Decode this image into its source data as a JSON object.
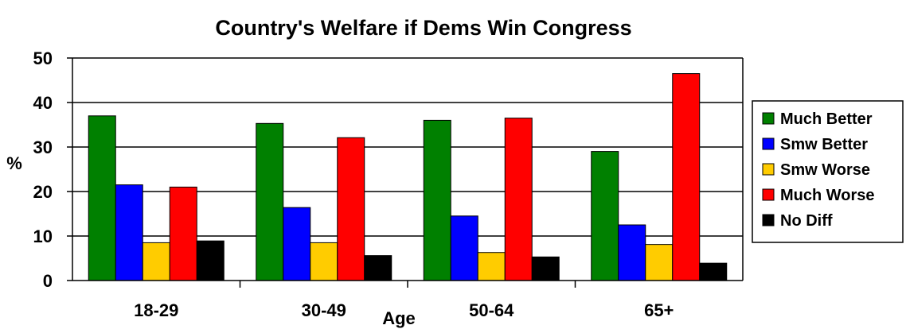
{
  "chart_data": {
    "type": "bar",
    "title": "Country's Welfare if Dems Win Congress",
    "xlabel": "Age",
    "ylabel": "%",
    "ylim": [
      0,
      50
    ],
    "yticks": [
      "0",
      "10",
      "20",
      "30",
      "40",
      "50"
    ],
    "grid": true,
    "legend_position": "right",
    "categories": [
      "18-29",
      "30-49",
      "50-64",
      "65+"
    ],
    "series": [
      {
        "name": "Much Better",
        "color": "#008000",
        "values": [
          37,
          35.3,
          36,
          29
        ]
      },
      {
        "name": "Smw Better",
        "color": "#0000ff",
        "values": [
          21.5,
          16.4,
          14.5,
          12.5
        ]
      },
      {
        "name": "Smw Worse",
        "color": "#ffcc00",
        "values": [
          8.5,
          8.5,
          6.3,
          8.1
        ]
      },
      {
        "name": "Much Worse",
        "color": "#ff0000",
        "values": [
          21,
          32.1,
          36.5,
          46.5
        ]
      },
      {
        "name": "No Diff",
        "color": "#000000",
        "values": [
          8.9,
          5.6,
          5.3,
          3.9
        ]
      }
    ]
  }
}
